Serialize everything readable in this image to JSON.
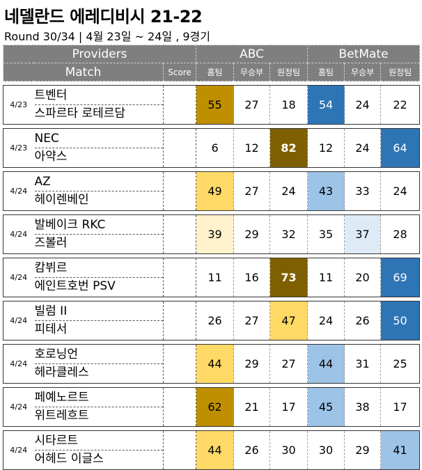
{
  "title": "네델란드 에레디비시 21-22",
  "subtitle": "Round 30/34 | 4월 23일 ~ 24일 , 9경기",
  "headers": {
    "providers": "Providers",
    "abc": "ABC",
    "betmate": "BetMate",
    "match": "Match",
    "score": "Score",
    "home": "홈팀",
    "draw": "무승부",
    "away": "원정팀"
  },
  "colors": {
    "header_bg": "#7f7f7f",
    "gold_dark": "#bf8f00",
    "gold_darker": "#7f6000",
    "gold_light": "#ffd966",
    "gold_pale": "#fff2cc",
    "blue_dark": "#2e75b6",
    "blue_light": "#9dc3e6",
    "blue_pale": "#deebf7"
  },
  "matches": [
    {
      "date": "4/23",
      "home": "트벤터",
      "away": "스파르타 로테르담",
      "score": "",
      "abc": [
        "55",
        "27",
        "18"
      ],
      "bet": [
        "54",
        "24",
        "22"
      ]
    },
    {
      "date": "4/23",
      "home": "NEC",
      "away": "아약스",
      "score": "",
      "abc": [
        "6",
        "12",
        "82"
      ],
      "bet": [
        "12",
        "24",
        "64"
      ]
    },
    {
      "date": "4/24",
      "home": "AZ",
      "away": "헤이렌베인",
      "score": "",
      "abc": [
        "49",
        "27",
        "24"
      ],
      "bet": [
        "43",
        "33",
        "24"
      ]
    },
    {
      "date": "4/24",
      "home": "발베이크 RKC",
      "away": "즈볼러",
      "score": "",
      "abc": [
        "39",
        "29",
        "32"
      ],
      "bet": [
        "35",
        "37",
        "28"
      ]
    },
    {
      "date": "4/24",
      "home": "캄뷔르",
      "away": "에인트호번 PSV",
      "score": "",
      "abc": [
        "11",
        "16",
        "73"
      ],
      "bet": [
        "11",
        "20",
        "69"
      ]
    },
    {
      "date": "4/24",
      "home": "빌럼 II",
      "away": "피테서",
      "score": "",
      "abc": [
        "26",
        "27",
        "47"
      ],
      "bet": [
        "24",
        "26",
        "50"
      ]
    },
    {
      "date": "4/24",
      "home": "호로닝언",
      "away": "헤라클레스",
      "score": "",
      "abc": [
        "44",
        "29",
        "27"
      ],
      "bet": [
        "44",
        "31",
        "25"
      ]
    },
    {
      "date": "4/24",
      "home": "페예노르트",
      "away": "위트레흐트",
      "score": "",
      "abc": [
        "62",
        "21",
        "17"
      ],
      "bet": [
        "45",
        "38",
        "17"
      ]
    },
    {
      "date": "4/24",
      "home": "시타르트",
      "away": "어헤드 이글스",
      "score": "",
      "abc": [
        "44",
        "26",
        "30"
      ],
      "bet": [
        "30",
        "29",
        "41"
      ]
    }
  ]
}
